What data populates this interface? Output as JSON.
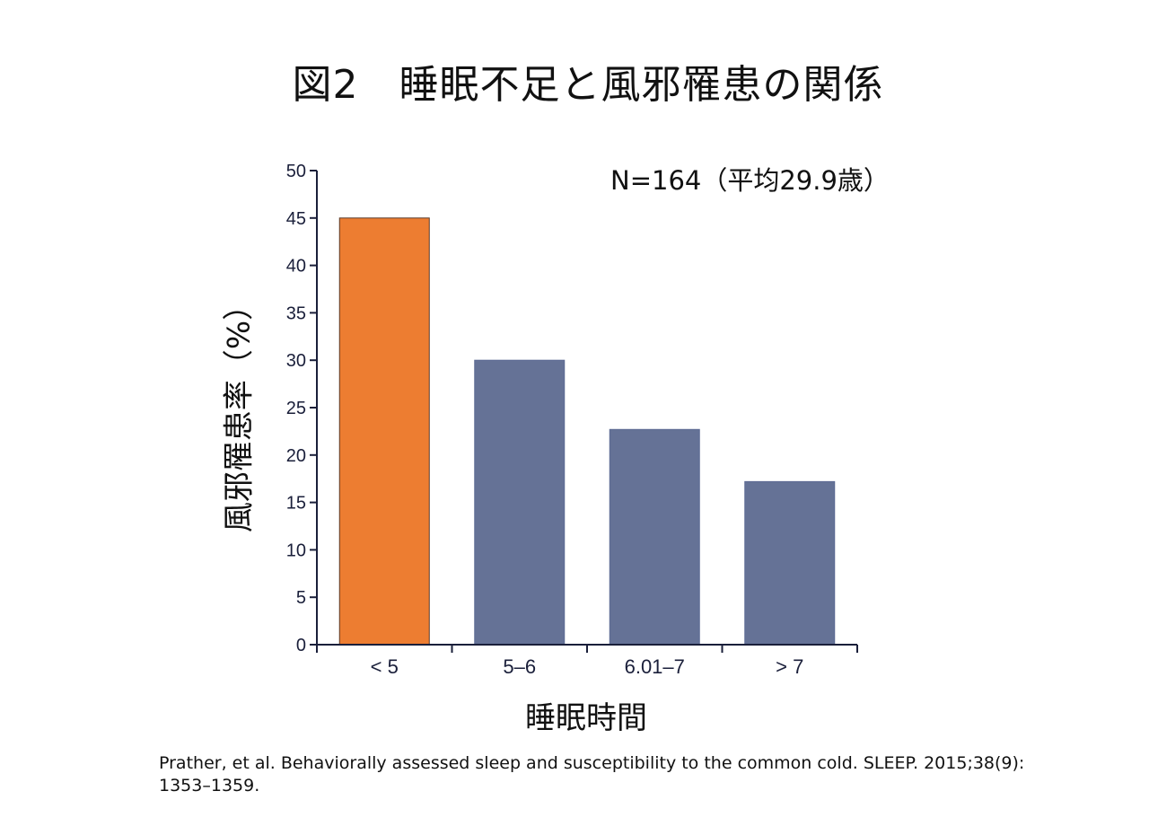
{
  "title": "図2　睡眠不足と風邪罹患の関係",
  "annotation": "N=164（平均29.9歳）",
  "citation": "Prather, et al.  Behaviorally assessed sleep and susceptibility to the common cold. SLEEP. 2015;38(9): 1353–1359.",
  "colors": {
    "highlight": "#ED7D31",
    "default": "#657296",
    "axis": "#1a1f3a"
  },
  "chart_data": {
    "type": "bar",
    "categories": [
      "< 5",
      "5–6",
      "6.01–7",
      "> 7"
    ],
    "values": [
      45,
      30,
      22.7,
      17.2
    ],
    "bar_colors": [
      "#ED7D31",
      "#657296",
      "#657296",
      "#657296"
    ],
    "title": "図2　睡眠不足と風邪罹患の関係",
    "xlabel": "睡眠時間",
    "ylabel": "風邪罹患率（%）",
    "ylim": [
      0,
      50
    ],
    "yticks": [
      "0",
      "5",
      "10",
      "15",
      "20",
      "25",
      "30",
      "35",
      "40",
      "45",
      "50"
    ],
    "grid": false,
    "legend": "none"
  }
}
